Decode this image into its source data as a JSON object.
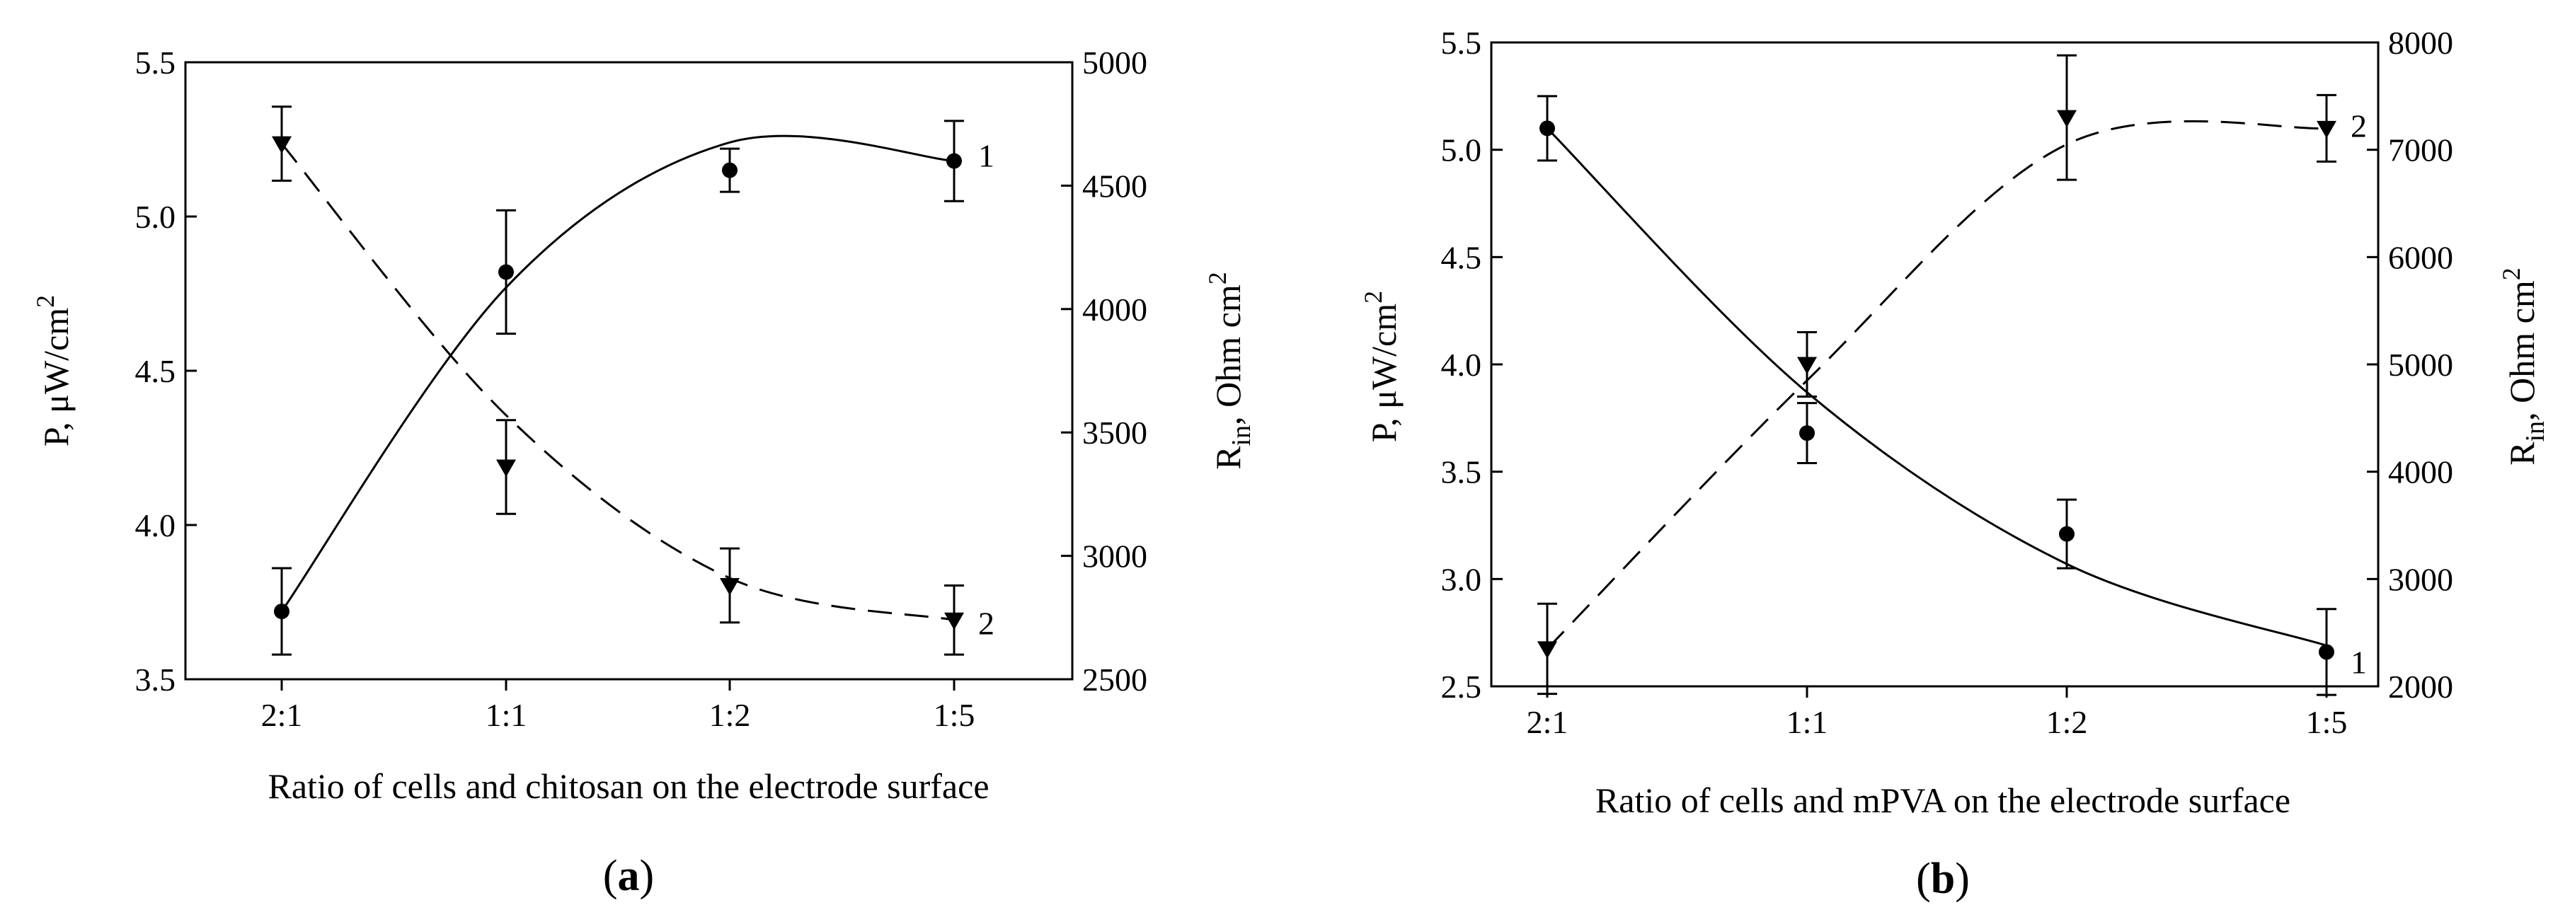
{
  "chart_data": [
    {
      "panel": "a",
      "panel_label": "(a)",
      "type": "line",
      "xlabel": "Ratio of cells and chitosan on the electrode surface",
      "ylabel_left": "P, μW/cm",
      "ylabel_left_sup": "2",
      "ylabel_right_base": "R",
      "ylabel_right_sub": "in",
      "ylabel_right_rest": ", Ohm cm",
      "ylabel_right_sup": "2",
      "categories": [
        "2:1",
        "1:1",
        "1:2",
        "1:5"
      ],
      "ylim_left": [
        3.5,
        5.5
      ],
      "yticks_left": [
        "3.5",
        "4.0",
        "4.5",
        "5.0",
        "5.5"
      ],
      "ylim_right": [
        2500,
        5000
      ],
      "yticks_right": [
        "2500",
        "3000",
        "3500",
        "4000",
        "4500",
        "5000"
      ],
      "series": [
        {
          "name": "1",
          "label": "1",
          "axis": "left",
          "marker": "circle",
          "line": "solid",
          "values": [
            3.72,
            4.82,
            5.15,
            5.18
          ],
          "errors": [
            0.14,
            0.2,
            0.07,
            0.13
          ],
          "fit": [
            3.72,
            4.77,
            5.24,
            5.18
          ]
        },
        {
          "name": "2",
          "label": "2",
          "axis": "right",
          "marker": "triangle-down",
          "line": "dashed",
          "values": [
            4670,
            3360,
            2880,
            2740
          ],
          "errors": [
            150,
            190,
            150,
            140
          ],
          "fit": [
            4670,
            3570,
            2910,
            2740
          ]
        }
      ]
    },
    {
      "panel": "b",
      "panel_label": "(b)",
      "type": "line",
      "xlabel": "Ratio of cells and mPVA on the electrode surface",
      "ylabel_left": "P, μW/cm",
      "ylabel_left_sup": "2",
      "ylabel_right_base": "R",
      "ylabel_right_sub": "in",
      "ylabel_right_rest": ", Ohm cm",
      "ylabel_right_sup": "2",
      "categories": [
        "2:1",
        "1:1",
        "1:2",
        "1:5"
      ],
      "ylim_left": [
        2.5,
        5.5
      ],
      "yticks_left": [
        "2.5",
        "3.0",
        "3.5",
        "4.0",
        "4.5",
        "5.0",
        "5.5"
      ],
      "ylim_right": [
        2000,
        8000
      ],
      "yticks_right": [
        "2000",
        "3000",
        "4000",
        "5000",
        "6000",
        "7000",
        "8000"
      ],
      "series": [
        {
          "name": "1",
          "label": "1",
          "axis": "left",
          "marker": "circle",
          "line": "solid",
          "values": [
            5.1,
            3.68,
            3.21,
            2.66
          ],
          "errors": [
            0.15,
            0.14,
            0.16,
            0.2
          ],
          "fit": [
            5.1,
            3.87,
            3.07,
            2.69
          ]
        },
        {
          "name": "2",
          "label": "2",
          "axis": "right",
          "marker": "triangle-down",
          "line": "dashed",
          "values": [
            2350,
            5000,
            7300,
            7200
          ],
          "errors": [
            420,
            300,
            580,
            310
          ],
          "fit": [
            2350,
            4850,
            7050,
            7200
          ]
        }
      ]
    }
  ]
}
